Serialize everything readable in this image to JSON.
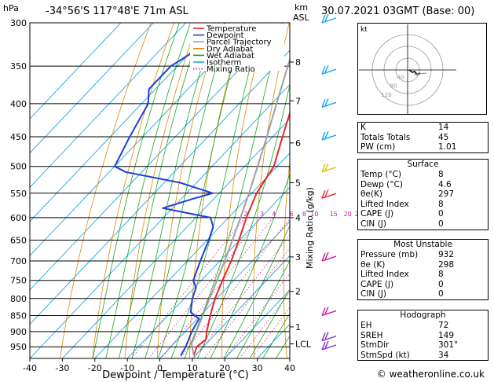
{
  "header": {
    "pressure_unit": "hPa",
    "location": "-34°56'S  117°48'E  71m  ASL",
    "height_unit": "km",
    "height_unit2": "ASL",
    "datetime": "30.07.2021  03GMT  (Base: 00)"
  },
  "footer": "© weatheronline.co.uk",
  "colors": {
    "temperature": "#e8272a",
    "dewpoint": "#1f3fd6",
    "parcel": "#a0a0a0",
    "dry_adiabat": "#e08a00",
    "wet_adiabat": "#17a817",
    "isotherm": "#19a6e6",
    "mixing_ratio": "#d01aa0"
  },
  "legend": [
    {
      "label": "Temperature",
      "color": "#e8272a",
      "style": "solid"
    },
    {
      "label": "Dewpoint",
      "color": "#1f3fd6",
      "style": "solid"
    },
    {
      "label": "Parcel Trajectory",
      "color": "#a0a0a0",
      "style": "solid"
    },
    {
      "label": "Dry Adiabat",
      "color": "#e08a00",
      "style": "solid"
    },
    {
      "label": "Wet Adiabat",
      "color": "#17a817",
      "style": "solid"
    },
    {
      "label": "Isotherm",
      "color": "#19a6e6",
      "style": "solid"
    },
    {
      "label": "Mixing Ratio",
      "color": "#d01aa0",
      "style": "dotted"
    }
  ],
  "chart_data": {
    "type": "line",
    "diagram": "skew-T log-P",
    "xlabel": "Dewpoint / Temperature (°C)",
    "ylabel_right": "Mixing Ratio (g/kg)",
    "x_ticks": [
      -40,
      -30,
      -20,
      -10,
      0,
      10,
      20,
      30,
      40
    ],
    "xlim": [
      -40,
      40
    ],
    "pressure_levels": [
      300,
      350,
      400,
      450,
      500,
      550,
      600,
      650,
      700,
      750,
      800,
      850,
      900,
      950
    ],
    "ylim": [
      300,
      990
    ],
    "y_scale": "log",
    "km_ticks": [
      {
        "label": "8",
        "p": 345
      },
      {
        "label": "7",
        "p": 396
      },
      {
        "label": "6",
        "p": 460
      },
      {
        "label": "5",
        "p": 530
      },
      {
        "label": "4",
        "p": 600
      },
      {
        "label": "3",
        "p": 690
      },
      {
        "label": "2",
        "p": 780
      },
      {
        "label": "1",
        "p": 885
      },
      {
        "label": "LCL",
        "p": 940
      }
    ],
    "mixing_ratio_labels": [
      "2",
      "3",
      "4",
      "6",
      "8",
      "10",
      "15",
      "20",
      "25"
    ],
    "mixing_ratio_values": [
      2,
      3,
      4,
      6,
      8,
      10,
      15,
      20,
      25
    ],
    "series": [
      {
        "name": "Temperature",
        "points": [
          {
            "p": 980,
            "t": 9.6
          },
          {
            "p": 950,
            "t": 8.0
          },
          {
            "p": 925,
            "t": 8.6
          },
          {
            "p": 900,
            "t": 6.6
          },
          {
            "p": 850,
            "t": 3.0
          },
          {
            "p": 800,
            "t": -0.5
          },
          {
            "p": 750,
            "t": -3.5
          },
          {
            "p": 700,
            "t": -6.5
          },
          {
            "p": 650,
            "t": -10.2
          },
          {
            "p": 600,
            "t": -14.5
          },
          {
            "p": 550,
            "t": -18.5
          },
          {
            "p": 500,
            "t": -21.0
          },
          {
            "p": 450,
            "t": -27.0
          },
          {
            "p": 400,
            "t": -33.5
          },
          {
            "p": 370,
            "t": -38.5
          },
          {
            "p": 350,
            "t": -38.0
          },
          {
            "p": 320,
            "t": -41.0
          },
          {
            "p": 300,
            "t": -43.0
          }
        ]
      },
      {
        "name": "Dewpoint",
        "points": [
          {
            "p": 980,
            "t": 5.6
          },
          {
            "p": 950,
            "t": 4.6
          },
          {
            "p": 900,
            "t": 2.0
          },
          {
            "p": 860,
            "t": 0.5
          },
          {
            "p": 840,
            "t": -4.0
          },
          {
            "p": 800,
            "t": -7.5
          },
          {
            "p": 770,
            "t": -9.5
          },
          {
            "p": 750,
            "t": -12.5
          },
          {
            "p": 700,
            "t": -16.0
          },
          {
            "p": 650,
            "t": -19.5
          },
          {
            "p": 620,
            "t": -22.0
          },
          {
            "p": 600,
            "t": -25.5
          },
          {
            "p": 580,
            "t": -43.0
          },
          {
            "p": 560,
            "t": -36.0
          },
          {
            "p": 550,
            "t": -32.0
          },
          {
            "p": 530,
            "t": -45.0
          },
          {
            "p": 510,
            "t": -65.0
          },
          {
            "p": 500,
            "t": -70.0
          },
          {
            "p": 450,
            "t": -74.0
          },
          {
            "p": 400,
            "t": -78.0
          },
          {
            "p": 380,
            "t": -82.0
          },
          {
            "p": 350,
            "t": -82.0
          },
          {
            "p": 320,
            "t": -77.0
          },
          {
            "p": 300,
            "t": -78.0
          }
        ]
      },
      {
        "name": "Parcel Trajectory",
        "points": [
          {
            "p": 980,
            "t": 9.6
          },
          {
            "p": 940,
            "t": 5.5
          },
          {
            "p": 900,
            "t": 3.4
          },
          {
            "p": 850,
            "t": 0.7
          },
          {
            "p": 800,
            "t": -2.2
          },
          {
            "p": 750,
            "t": -5.2
          },
          {
            "p": 700,
            "t": -8.5
          },
          {
            "p": 650,
            "t": -12.2
          },
          {
            "p": 600,
            "t": -16.3
          },
          {
            "p": 550,
            "t": -20.8
          },
          {
            "p": 500,
            "t": -26.0
          },
          {
            "p": 450,
            "t": -31.8
          },
          {
            "p": 400,
            "t": -38.5
          },
          {
            "p": 350,
            "t": -46.0
          },
          {
            "p": 300,
            "t": -54.5
          }
        ]
      }
    ],
    "wind_barb_levels": [
      300,
      360,
      405,
      455,
      510,
      560,
      700,
      850,
      930,
      960
    ]
  },
  "hodograph": {
    "label": "kt",
    "ring_labels": [
      "40",
      "80",
      "120"
    ]
  },
  "indices": {
    "general": [
      {
        "label": "K",
        "value": "14"
      },
      {
        "label": "Totals Totals",
        "value": "45"
      },
      {
        "label": "PW (cm)",
        "value": "1.01"
      }
    ],
    "surface_title": "Surface",
    "surface": [
      {
        "label": "Temp (°C)",
        "value": "8"
      },
      {
        "label": "Dewp (°C)",
        "value": "4.6"
      },
      {
        "label": "θe(K)",
        "value": "297"
      },
      {
        "label": "Lifted Index",
        "value": "8"
      },
      {
        "label": "CAPE (J)",
        "value": "0"
      },
      {
        "label": "CIN (J)",
        "value": "0"
      }
    ],
    "unstable_title": "Most Unstable",
    "unstable": [
      {
        "label": "Pressure (mb)",
        "value": "932"
      },
      {
        "label": "θe (K)",
        "value": "298"
      },
      {
        "label": "Lifted Index",
        "value": "8"
      },
      {
        "label": "CAPE (J)",
        "value": "0"
      },
      {
        "label": "CIN (J)",
        "value": "0"
      }
    ],
    "hodograph_title": "Hodograph",
    "hodo": [
      {
        "label": "EH",
        "value": "72"
      },
      {
        "label": "SREH",
        "value": "149"
      },
      {
        "label": "StmDir",
        "value": "301°"
      },
      {
        "label": "StmSpd (kt)",
        "value": "34"
      }
    ]
  }
}
